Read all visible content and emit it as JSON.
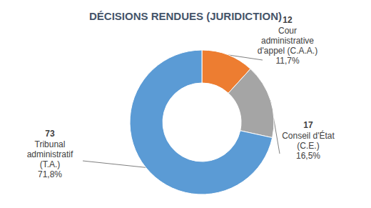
{
  "chart_data": {
    "type": "pie",
    "title": "DÉCISIONS RENDUES (JURIDICTION)",
    "categories": [
      "Cour\nadministrative\nd'appel (C.A.A.)",
      "Conseil d'État\n(C.E.)",
      "Tribunal\nadministratif\n(T.A.)"
    ],
    "values": [
      12,
      17,
      73
    ],
    "percent_labels": [
      "11,7%",
      "16,5%",
      "71,8%"
    ],
    "colors": [
      "#ED7D31",
      "#A5A5A5",
      "#5B9BD5"
    ],
    "data_labels": true
  }
}
